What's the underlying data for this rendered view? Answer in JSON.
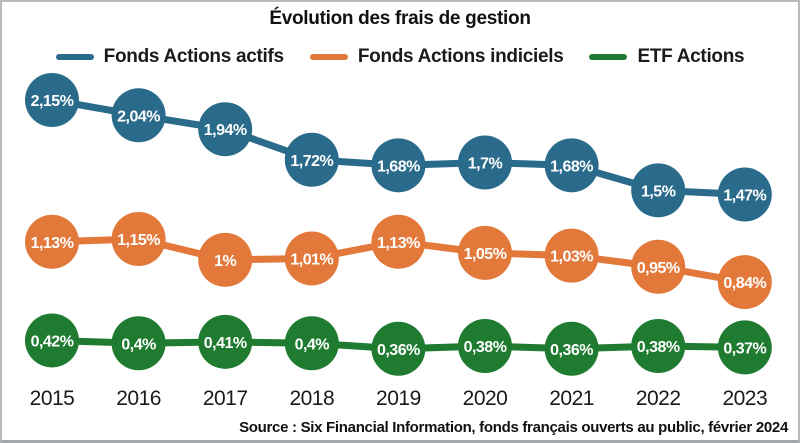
{
  "title": "Évolution des frais de gestion",
  "legend": [
    {
      "label": "Fonds Actions actifs",
      "color": "#2a6b8c"
    },
    {
      "label": "Fonds Actions indiciels",
      "color": "#e2793b"
    },
    {
      "label": "ETF Actions",
      "color": "#1e7b2f"
    }
  ],
  "source": "Source : Six Financial Information, fonds français ouverts au public, février 2024",
  "colors": {
    "blue": "#2a6b8c",
    "orange": "#e2793b",
    "green": "#1e7b2f",
    "text": "#111111",
    "frame_border": "#b7babc",
    "background": "#ffffff"
  },
  "chart_data": {
    "type": "line",
    "title": "Évolution des frais de gestion",
    "xlabel": "",
    "ylabel": "",
    "grid": false,
    "legend_position": "top",
    "marker": "filled-circle-with-data-label",
    "value_format": "french-percent",
    "categories": [
      "2015",
      "2016",
      "2017",
      "2018",
      "2019",
      "2020",
      "2021",
      "2022",
      "2023"
    ],
    "series": [
      {
        "name": "Fonds Actions actifs",
        "color": "#2a6b8c",
        "values": [
          2.15,
          2.04,
          1.94,
          1.72,
          1.68,
          1.7,
          1.68,
          1.5,
          1.47
        ],
        "labels": [
          "2,15%",
          "2,04%",
          "1,94%",
          "1,72%",
          "1,68%",
          "1,7%",
          "1,68%",
          "1,5%",
          "1,47%"
        ]
      },
      {
        "name": "Fonds Actions indiciels",
        "color": "#e2793b",
        "values": [
          1.13,
          1.15,
          1.0,
          1.01,
          1.13,
          1.05,
          1.03,
          0.95,
          0.84
        ],
        "labels": [
          "1,13%",
          "1,15%",
          "1%",
          "1,01%",
          "1,13%",
          "1,05%",
          "1,03%",
          "0,95%",
          "0,84%"
        ]
      },
      {
        "name": "ETF Actions",
        "color": "#1e7b2f",
        "values": [
          0.42,
          0.4,
          0.41,
          0.4,
          0.36,
          0.38,
          0.36,
          0.38,
          0.37
        ],
        "labels": [
          "0,42%",
          "0,4%",
          "0,41%",
          "0,4%",
          "0,36%",
          "0,38%",
          "0,36%",
          "0,38%",
          "0,37%"
        ]
      }
    ],
    "ylim": [
      0,
      2.3
    ]
  }
}
